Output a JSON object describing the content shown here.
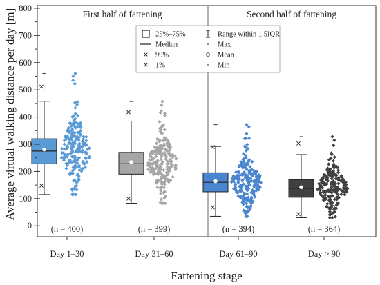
{
  "chart_data": {
    "type": "box",
    "xlabel": "Fattening stage",
    "ylabel": "Average virtual walking distance per day [m]",
    "ylim": [
      -40,
      810
    ],
    "yticks": [
      0,
      100,
      200,
      300,
      400,
      500,
      600,
      700,
      800
    ],
    "halves": [
      {
        "label": "First half of fattening",
        "groups": [
          0,
          1
        ]
      },
      {
        "label": "Second half of fattening",
        "groups": [
          2,
          3
        ]
      }
    ],
    "groups": [
      {
        "category": "Day 1–30",
        "n_label": "(n = 400)",
        "n": 400,
        "color": "#5b9bd5",
        "box_color": "#5b9bd5",
        "q1": 228,
        "median": 275,
        "q3": 320,
        "mean": 281,
        "whisker_low": 115,
        "whisker_high": 458,
        "p1": 148,
        "p99": 512,
        "min": 115,
        "max": 560,
        "points_low": 115,
        "points_high": 560
      },
      {
        "category": "Day 31–60",
        "n_label": "(n = 399)",
        "n": 399,
        "color": "#a6a6a6",
        "box_color": "#a6a6a6",
        "q1": 190,
        "median": 228,
        "q3": 270,
        "mean": 234,
        "whisker_low": 83,
        "whisker_high": 385,
        "p1": 100,
        "p99": 418,
        "min": 83,
        "max": 457,
        "points_low": 83,
        "points_high": 457
      },
      {
        "category": "Day 61–90",
        "n_label": "(n = 394)",
        "n": 394,
        "color": "#4a86cf",
        "box_color": "#4a86cf",
        "q1": 125,
        "median": 160,
        "q3": 195,
        "mean": 164,
        "whisker_low": 35,
        "whisker_high": 292,
        "p1": 68,
        "p99": 290,
        "min": 35,
        "max": 372,
        "points_low": 35,
        "points_high": 372
      },
      {
        "category": "Day > 90",
        "n_label": "(n = 364)",
        "n": 364,
        "color": "#404040",
        "box_color": "#404040",
        "q1": 105,
        "median": 138,
        "q3": 170,
        "mean": 142,
        "whisker_low": 30,
        "whisker_high": 262,
        "p1": 43,
        "p99": 303,
        "min": 30,
        "max": 328,
        "points_low": 30,
        "points_high": 328
      }
    ],
    "legend": {
      "items": [
        {
          "symbol": "box",
          "label": "25%–75%"
        },
        {
          "symbol": "whisker",
          "label": "Range within 1.5IQR"
        },
        {
          "symbol": "line",
          "label": "Median"
        },
        {
          "symbol": "dash",
          "label": "Max"
        },
        {
          "symbol": "cross",
          "label": "99%"
        },
        {
          "symbol": "circle",
          "label": "Mean"
        },
        {
          "symbol": "cross",
          "label": "1%"
        },
        {
          "symbol": "dash",
          "label": "Min"
        }
      ],
      "placement": "top-center"
    },
    "grid": false
  }
}
